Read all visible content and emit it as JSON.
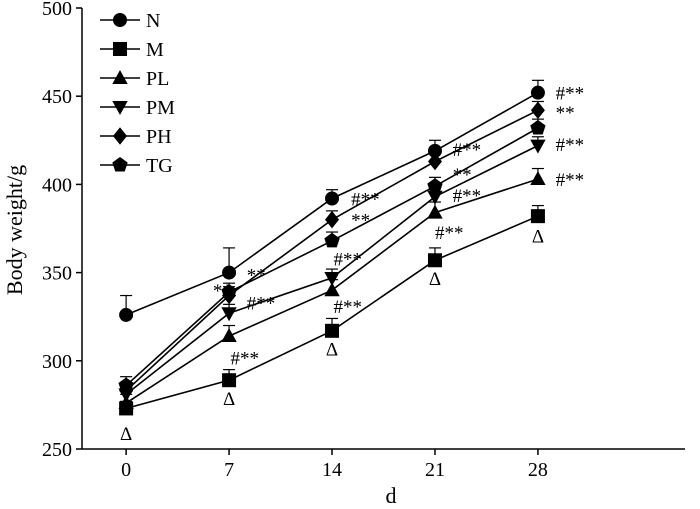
{
  "chart_data": {
    "type": "line",
    "title": "",
    "xlabel": "d",
    "ylabel": "Body weight/g",
    "x": [
      0,
      7,
      14,
      21,
      28
    ],
    "xticks": [
      "0",
      "7",
      "14",
      "21",
      "28"
    ],
    "xlim": [
      -3,
      38
    ],
    "ylim": [
      250,
      500
    ],
    "yticks": [
      "250",
      "300",
      "350",
      "400",
      "450",
      "500"
    ],
    "grid": false,
    "legend": "top-left",
    "series": [
      {
        "name": "N",
        "marker": "circle",
        "values": [
          326,
          350,
          392,
          419,
          452
        ],
        "errors": [
          11,
          14,
          5,
          6,
          7
        ]
      },
      {
        "name": "M",
        "marker": "square",
        "values": [
          273,
          289,
          317,
          357,
          382
        ],
        "errors": [
          4,
          6,
          7,
          7,
          6
        ]
      },
      {
        "name": "PL",
        "marker": "triangle-up",
        "values": [
          276,
          314,
          340,
          384,
          403
        ],
        "errors": [
          5,
          6,
          6,
          6,
          6
        ]
      },
      {
        "name": "PM",
        "marker": "triangle-down",
        "values": [
          281,
          327,
          347,
          393,
          422
        ],
        "errors": [
          4,
          5,
          5,
          5,
          5
        ]
      },
      {
        "name": "PH",
        "marker": "diamond",
        "values": [
          283,
          337,
          380,
          413,
          442
        ],
        "errors": [
          4,
          5,
          5,
          5,
          5
        ]
      },
      {
        "name": "TG",
        "marker": "pentagon",
        "values": [
          286,
          339,
          368,
          399,
          432
        ],
        "errors": [
          5,
          5,
          5,
          5,
          5
        ]
      }
    ],
    "annotations": [
      {
        "text": "Δ",
        "x": 0,
        "y": 259
      },
      {
        "text": "Δ",
        "x": 7,
        "y": 279
      },
      {
        "text": "Δ",
        "x": 14,
        "y": 307
      },
      {
        "text": "Δ",
        "x": 21,
        "y": 347
      },
      {
        "text": "Δ",
        "x": 28,
        "y": 371
      },
      {
        "text": "**",
        "x": 8.2,
        "y": 349
      },
      {
        "text": "**",
        "x": 5.9,
        "y": 340
      },
      {
        "text": "#**",
        "x": 8.2,
        "y": 333
      },
      {
        "text": "#**",
        "x": 7.1,
        "y": 302
      },
      {
        "text": "#**",
        "x": 15.3,
        "y": 392
      },
      {
        "text": "**",
        "x": 15.3,
        "y": 380
      },
      {
        "text": "#**",
        "x": 14.1,
        "y": 358
      },
      {
        "text": "#**",
        "x": 14.1,
        "y": 331
      },
      {
        "text": "#**",
        "x": 22.2,
        "y": 420
      },
      {
        "text": "**",
        "x": 22.2,
        "y": 406
      },
      {
        "text": "#**",
        "x": 22.2,
        "y": 394
      },
      {
        "text": "#**",
        "x": 21.0,
        "y": 373
      },
      {
        "text": "#**",
        "x": 29.2,
        "y": 452
      },
      {
        "text": "**",
        "x": 29.2,
        "y": 441
      },
      {
        "text": "#**",
        "x": 29.2,
        "y": 423
      },
      {
        "text": "#**",
        "x": 29.2,
        "y": 403
      }
    ]
  }
}
